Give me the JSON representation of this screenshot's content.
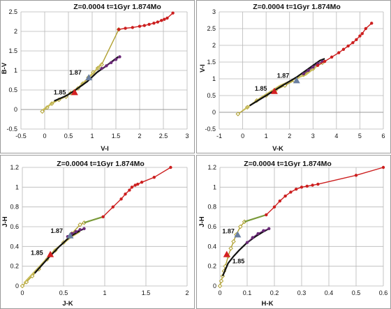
{
  "chart_data": [
    {
      "type": "line",
      "title": "Z=0.0004  t=1Gyr  1.874Mo",
      "xlabel": "V-I",
      "ylabel": "B-V",
      "xlim": [
        -0.5,
        3
      ],
      "ylim": [
        -0.5,
        2.5
      ],
      "xticks": [
        -0.5,
        0,
        0.5,
        1,
        1.5,
        2,
        2.5,
        3
      ],
      "yticks": [
        -0.5,
        0,
        0.5,
        1,
        1.5,
        2,
        2.5
      ],
      "series": [
        {
          "role": "track",
          "color": "#b0a030",
          "marker": "diamond",
          "values": [
            [
              -0.05,
              -0.05
            ],
            [
              0.05,
              0.05
            ],
            [
              0.15,
              0.15
            ],
            [
              0.3,
              0.25
            ],
            [
              0.45,
              0.33
            ],
            [
              0.55,
              0.42
            ],
            [
              0.62,
              0.46
            ],
            [
              0.7,
              0.54
            ],
            [
              0.8,
              0.66
            ],
            [
              0.92,
              0.82
            ],
            [
              1.02,
              0.95
            ],
            [
              1.12,
              1.06
            ],
            [
              1.2,
              1.15
            ],
            [
              1.56,
              2.05
            ]
          ]
        },
        {
          "role": "track",
          "color": "#c8bc5a",
          "marker": "none",
          "values": [
            [
              -0.05,
              -0.02
            ],
            [
              0.2,
              0.2
            ],
            [
              0.5,
              0.38
            ],
            [
              0.7,
              0.55
            ],
            [
              1.0,
              0.9
            ],
            [
              1.2,
              1.18
            ]
          ]
        },
        {
          "role": "track",
          "color": "#111111",
          "marker": "none",
          "values": [
            [
              0.2,
              0.22
            ],
            [
              0.45,
              0.35
            ],
            [
              0.65,
              0.5
            ],
            [
              0.9,
              0.72
            ],
            [
              1.1,
              0.95
            ],
            [
              1.3,
              1.12
            ],
            [
              1.55,
              1.35
            ]
          ]
        },
        {
          "role": "track",
          "color": "#6b2a78",
          "marker": "circle",
          "values": [
            [
              1.2,
              1.05
            ],
            [
              1.3,
              1.12
            ],
            [
              1.4,
              1.2
            ],
            [
              1.5,
              1.28
            ],
            [
              1.58,
              1.35
            ]
          ]
        },
        {
          "role": "track",
          "color": "#cc1f1f",
          "marker": "circle",
          "values": [
            [
              1.56,
              2.05
            ],
            [
              1.7,
              2.08
            ],
            [
              1.85,
              2.1
            ],
            [
              2.0,
              2.13
            ],
            [
              2.1,
              2.15
            ],
            [
              2.2,
              2.18
            ],
            [
              2.3,
              2.21
            ],
            [
              2.38,
              2.24
            ],
            [
              2.46,
              2.28
            ],
            [
              2.52,
              2.31
            ],
            [
              2.58,
              2.34
            ],
            [
              2.7,
              2.47
            ]
          ]
        }
      ],
      "points": [
        {
          "label": "1.85",
          "x": 0.63,
          "y": 0.44,
          "color": "#d42020"
        },
        {
          "label": "1.87",
          "x": 0.93,
          "y": 0.82,
          "color": "#6a7fa0"
        }
      ]
    },
    {
      "type": "line",
      "title": "Z=0.0004  t=1Gyr  1.874Mo",
      "xlabel": "V-K",
      "ylabel": "V-I",
      "xlim": [
        -1,
        6
      ],
      "ylim": [
        -0.5,
        3
      ],
      "xticks": [
        -1,
        0,
        1,
        2,
        3,
        4,
        5,
        6
      ],
      "yticks": [
        -0.5,
        0,
        0.5,
        1,
        1.5,
        2,
        2.5,
        3
      ],
      "series": [
        {
          "role": "track",
          "color": "#b0a030",
          "marker": "diamond",
          "values": [
            [
              -0.2,
              -0.05
            ],
            [
              0.2,
              0.15
            ],
            [
              0.6,
              0.35
            ],
            [
              1.0,
              0.5
            ],
            [
              1.4,
              0.66
            ],
            [
              1.8,
              0.8
            ],
            [
              2.2,
              0.95
            ],
            [
              2.6,
              1.12
            ],
            [
              3.0,
              1.3
            ],
            [
              3.4,
              1.48
            ]
          ]
        },
        {
          "role": "track",
          "color": "#c8bc5a",
          "marker": "none",
          "values": [
            [
              0.0,
              0.05
            ],
            [
              0.8,
              0.45
            ],
            [
              1.6,
              0.8
            ],
            [
              2.4,
              1.05
            ],
            [
              2.7,
              1.12
            ],
            [
              3.2,
              1.4
            ]
          ]
        },
        {
          "role": "track",
          "color": "#111111",
          "marker": "none",
          "values": [
            [
              0.3,
              0.2
            ],
            [
              1.0,
              0.5
            ],
            [
              1.7,
              0.8
            ],
            [
              2.3,
              1.05
            ],
            [
              2.8,
              1.3
            ],
            [
              3.3,
              1.55
            ],
            [
              3.5,
              1.6
            ]
          ]
        },
        {
          "role": "track",
          "color": "#6b2a78",
          "marker": "circle",
          "values": [
            [
              2.6,
              1.15
            ],
            [
              2.8,
              1.25
            ],
            [
              3.0,
              1.35
            ],
            [
              3.2,
              1.45
            ],
            [
              3.4,
              1.52
            ]
          ]
        },
        {
          "role": "track",
          "color": "#cc1f1f",
          "marker": "circle",
          "values": [
            [
              3.2,
              1.4
            ],
            [
              3.5,
              1.52
            ],
            [
              3.8,
              1.65
            ],
            [
              4.1,
              1.78
            ],
            [
              4.3,
              1.88
            ],
            [
              4.5,
              1.98
            ],
            [
              4.7,
              2.08
            ],
            [
              4.85,
              2.17
            ],
            [
              5.0,
              2.28
            ],
            [
              5.1,
              2.35
            ],
            [
              5.25,
              2.5
            ],
            [
              5.5,
              2.66
            ]
          ]
        }
      ],
      "points": [
        {
          "label": "1.85",
          "x": 1.35,
          "y": 0.63,
          "color": "#d42020"
        },
        {
          "label": "1.87",
          "x": 2.3,
          "y": 0.95,
          "color": "#6a7fa0"
        }
      ]
    },
    {
      "type": "line",
      "title": "Z=0.0004  t=1Gyr  1.874Mo",
      "xlabel": "J-K",
      "ylabel": "J-H",
      "xlim": [
        0,
        2
      ],
      "ylim": [
        0,
        1.2
      ],
      "xticks": [
        0,
        0.5,
        1,
        1.5,
        2
      ],
      "yticks": [
        0,
        0.2,
        0.4,
        0.6,
        0.8,
        1,
        1.2
      ],
      "series": [
        {
          "role": "track",
          "color": "#b0a030",
          "marker": "diamond",
          "values": [
            [
              0.0,
              0.0
            ],
            [
              0.05,
              0.04
            ],
            [
              0.12,
              0.1
            ],
            [
              0.2,
              0.17
            ],
            [
              0.3,
              0.27
            ],
            [
              0.4,
              0.36
            ],
            [
              0.5,
              0.44
            ],
            [
              0.6,
              0.53
            ],
            [
              0.7,
              0.62
            ],
            [
              0.75,
              0.64
            ]
          ]
        },
        {
          "role": "track",
          "color": "#c8bc5a",
          "marker": "none",
          "values": [
            [
              0.02,
              0.03
            ],
            [
              0.2,
              0.19
            ],
            [
              0.4,
              0.37
            ],
            [
              0.6,
              0.5
            ],
            [
              0.7,
              0.55
            ]
          ]
        },
        {
          "role": "track",
          "color": "#111111",
          "marker": "none",
          "values": [
            [
              0.15,
              0.13
            ],
            [
              0.3,
              0.27
            ],
            [
              0.45,
              0.4
            ],
            [
              0.58,
              0.5
            ],
            [
              0.7,
              0.56
            ],
            [
              0.75,
              0.58
            ]
          ]
        },
        {
          "role": "track",
          "color": "#6b2a78",
          "marker": "circle",
          "values": [
            [
              0.55,
              0.5
            ],
            [
              0.6,
              0.53
            ],
            [
              0.65,
              0.55
            ],
            [
              0.7,
              0.57
            ],
            [
              0.75,
              0.58
            ]
          ]
        },
        {
          "role": "track",
          "color": "#7a9a3a",
          "marker": "none",
          "values": [
            [
              0.75,
              0.64
            ],
            [
              0.98,
              0.7
            ]
          ]
        },
        {
          "role": "track",
          "color": "#cc1f1f",
          "marker": "circle",
          "values": [
            [
              0.98,
              0.7
            ],
            [
              1.1,
              0.8
            ],
            [
              1.2,
              0.88
            ],
            [
              1.25,
              0.93
            ],
            [
              1.3,
              0.97
            ],
            [
              1.33,
              1.0
            ],
            [
              1.37,
              1.02
            ],
            [
              1.4,
              1.03
            ],
            [
              1.45,
              1.05
            ],
            [
              1.6,
              1.1
            ],
            [
              1.8,
              1.2
            ]
          ]
        }
      ],
      "points": [
        {
          "label": "1.85",
          "x": 0.34,
          "y": 0.32,
          "color": "#d42020"
        },
        {
          "label": "1.87",
          "x": 0.58,
          "y": 0.51,
          "color": "#6a7fa0"
        }
      ]
    },
    {
      "type": "line",
      "title": "Z=0.0004  t=1Gyr  1.874Mo",
      "xlabel": "H-K",
      "ylabel": "J-H",
      "xlim": [
        0,
        0.6
      ],
      "ylim": [
        0,
        1.2
      ],
      "xticks": [
        0,
        0.1,
        0.2,
        0.3,
        0.4,
        0.5,
        0.6
      ],
      "yticks": [
        0,
        0.2,
        0.4,
        0.6,
        0.8,
        1,
        1.2
      ],
      "series": [
        {
          "role": "track",
          "color": "#b0a030",
          "marker": "diamond",
          "values": [
            [
              0.0,
              0.0
            ],
            [
              0.005,
              0.05
            ],
            [
              0.01,
              0.1
            ],
            [
              0.015,
              0.15
            ],
            [
              0.02,
              0.2
            ],
            [
              0.03,
              0.3
            ],
            [
              0.04,
              0.38
            ],
            [
              0.05,
              0.45
            ],
            [
              0.06,
              0.52
            ],
            [
              0.075,
              0.6
            ],
            [
              0.09,
              0.65
            ]
          ]
        },
        {
          "role": "track",
          "color": "#111111",
          "marker": "none",
          "values": [
            [
              0.01,
              0.1
            ],
            [
              0.03,
              0.23
            ],
            [
              0.05,
              0.3
            ],
            [
              0.07,
              0.36
            ],
            [
              0.1,
              0.44
            ],
            [
              0.13,
              0.5
            ],
            [
              0.16,
              0.55
            ],
            [
              0.18,
              0.58
            ]
          ]
        },
        {
          "role": "track",
          "color": "#6b2a78",
          "marker": "circle",
          "values": [
            [
              0.1,
              0.44
            ],
            [
              0.12,
              0.49
            ],
            [
              0.14,
              0.53
            ],
            [
              0.16,
              0.56
            ],
            [
              0.18,
              0.58
            ]
          ]
        },
        {
          "role": "track",
          "color": "#7a9a3a",
          "marker": "none",
          "values": [
            [
              0.09,
              0.65
            ],
            [
              0.17,
              0.72
            ]
          ]
        },
        {
          "role": "track",
          "color": "#cc1f1f",
          "marker": "circle",
          "values": [
            [
              0.17,
              0.72
            ],
            [
              0.2,
              0.8
            ],
            [
              0.22,
              0.86
            ],
            [
              0.24,
              0.91
            ],
            [
              0.26,
              0.95
            ],
            [
              0.28,
              0.98
            ],
            [
              0.3,
              1.0
            ],
            [
              0.32,
              1.01
            ],
            [
              0.34,
              1.02
            ],
            [
              0.36,
              1.03
            ],
            [
              0.5,
              1.12
            ],
            [
              0.6,
              1.2
            ]
          ]
        }
      ],
      "points": [
        {
          "label": "1.85",
          "x": 0.025,
          "y": 0.32,
          "color": "#d42020"
        },
        {
          "label": "1.87",
          "x": 0.065,
          "y": 0.52,
          "color": "#6a7fa0"
        }
      ]
    }
  ]
}
